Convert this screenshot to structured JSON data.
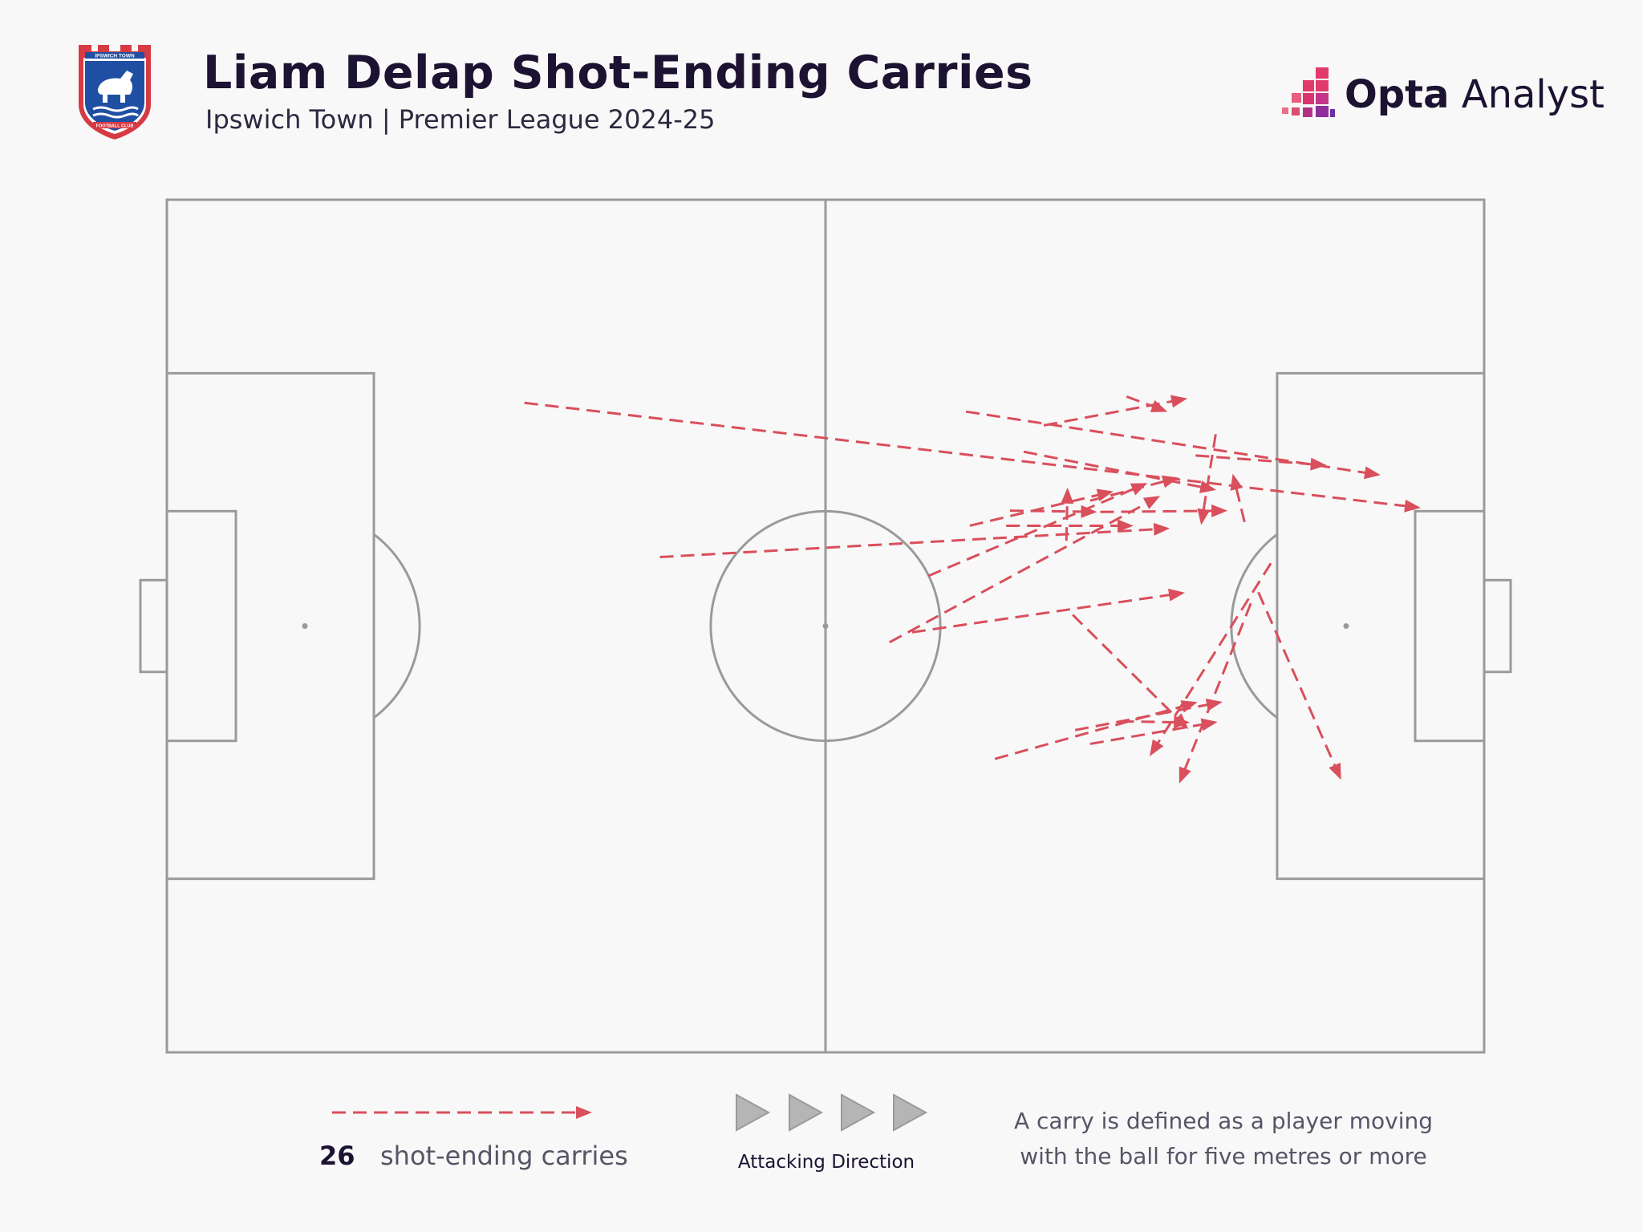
{
  "header": {
    "title": "Liam Delap Shot-Ending Carries",
    "subtitle": "Ipswich Town | Premier League 2024-25",
    "crest_top_text": "IPSWICH TOWN",
    "crest_bottom_text": "FOOTBALL CLUB",
    "brand_bold": "Opta",
    "brand_light": " Analyst"
  },
  "colors": {
    "background": "#f8f8f8",
    "pitch_lines": "#9a9a9a",
    "carry": "#d94f5c",
    "title": "#1c1231",
    "brand_pink": "#e23a6b"
  },
  "legend": {
    "count": "26",
    "label": "shot-ending carries",
    "attacking_direction": "Attacking Direction",
    "definition_line1": "A carry is defined as a player moving",
    "definition_line2": "with the ball for five metres or more"
  },
  "chart_data": {
    "type": "flow-map",
    "pitch": {
      "length": 105,
      "width": 68,
      "attacking_direction": "left-to-right"
    },
    "series": [
      {
        "name": "shot-ending carries",
        "carries": [
          {
            "x0": 28.5,
            "y0": 16.2,
            "x1": 100.2,
            "y1": 24.6
          },
          {
            "x0": 39.3,
            "y0": 28.5,
            "x1": 80.2,
            "y1": 26.2
          },
          {
            "x0": 59.4,
            "y0": 34.5,
            "x1": 81.4,
            "y1": 31.3
          },
          {
            "x0": 66.0,
            "y0": 44.6,
            "x1": 82.4,
            "y1": 40.0
          },
          {
            "x0": 72.4,
            "y0": 42.3,
            "x1": 84.4,
            "y1": 40.0
          },
          {
            "x0": 57.6,
            "y0": 35.3,
            "x1": 79.4,
            "y1": 23.5
          },
          {
            "x0": 60.7,
            "y0": 30.0,
            "x1": 78.4,
            "y1": 22.5
          },
          {
            "x0": 64.0,
            "y0": 26.0,
            "x1": 75.7,
            "y1": 23.2
          },
          {
            "x0": 73.6,
            "y0": 24.0,
            "x1": 80.9,
            "y1": 22.1
          },
          {
            "x0": 72.2,
            "y0": 33.1,
            "x1": 81.6,
            "y1": 42.4
          },
          {
            "x0": 73.6,
            "y0": 43.4,
            "x1": 84.0,
            "y1": 41.6
          },
          {
            "x0": 83.6,
            "y0": 18.7,
            "x1": 82.4,
            "y1": 26.2
          },
          {
            "x0": 85.9,
            "y0": 25.7,
            "x1": 84.9,
            "y1": 21.6
          },
          {
            "x0": 76.5,
            "y0": 15.7,
            "x1": 80.0,
            "y1": 17.0
          },
          {
            "x0": 66.9,
            "y0": 26.0,
            "x1": 77.3,
            "y1": 26.0
          },
          {
            "x0": 71.7,
            "y0": 27.2,
            "x1": 71.8,
            "y1": 22.7
          },
          {
            "x0": 69.9,
            "y0": 18.0,
            "x1": 81.6,
            "y1": 15.8
          },
          {
            "x0": 67.2,
            "y0": 24.8,
            "x1": 74.4,
            "y1": 24.9
          },
          {
            "x0": 74.4,
            "y0": 24.9,
            "x1": 84.8,
            "y1": 24.8
          },
          {
            "x0": 63.7,
            "y0": 16.9,
            "x1": 97.0,
            "y1": 22.0
          },
          {
            "x0": 82.0,
            "y0": 20.4,
            "x1": 92.7,
            "y1": 21.2
          },
          {
            "x0": 68.3,
            "y0": 20.1,
            "x1": 83.9,
            "y1": 23.2
          },
          {
            "x0": 76.0,
            "y0": 41.6,
            "x1": 81.8,
            "y1": 41.7
          },
          {
            "x0": 88.0,
            "y0": 29.0,
            "x1": 78.2,
            "y1": 44.6
          },
          {
            "x0": 86.4,
            "y0": 32.2,
            "x1": 80.6,
            "y1": 46.8
          },
          {
            "x0": 87.0,
            "y0": 31.3,
            "x1": 93.7,
            "y1": 46.5
          }
        ]
      }
    ]
  }
}
